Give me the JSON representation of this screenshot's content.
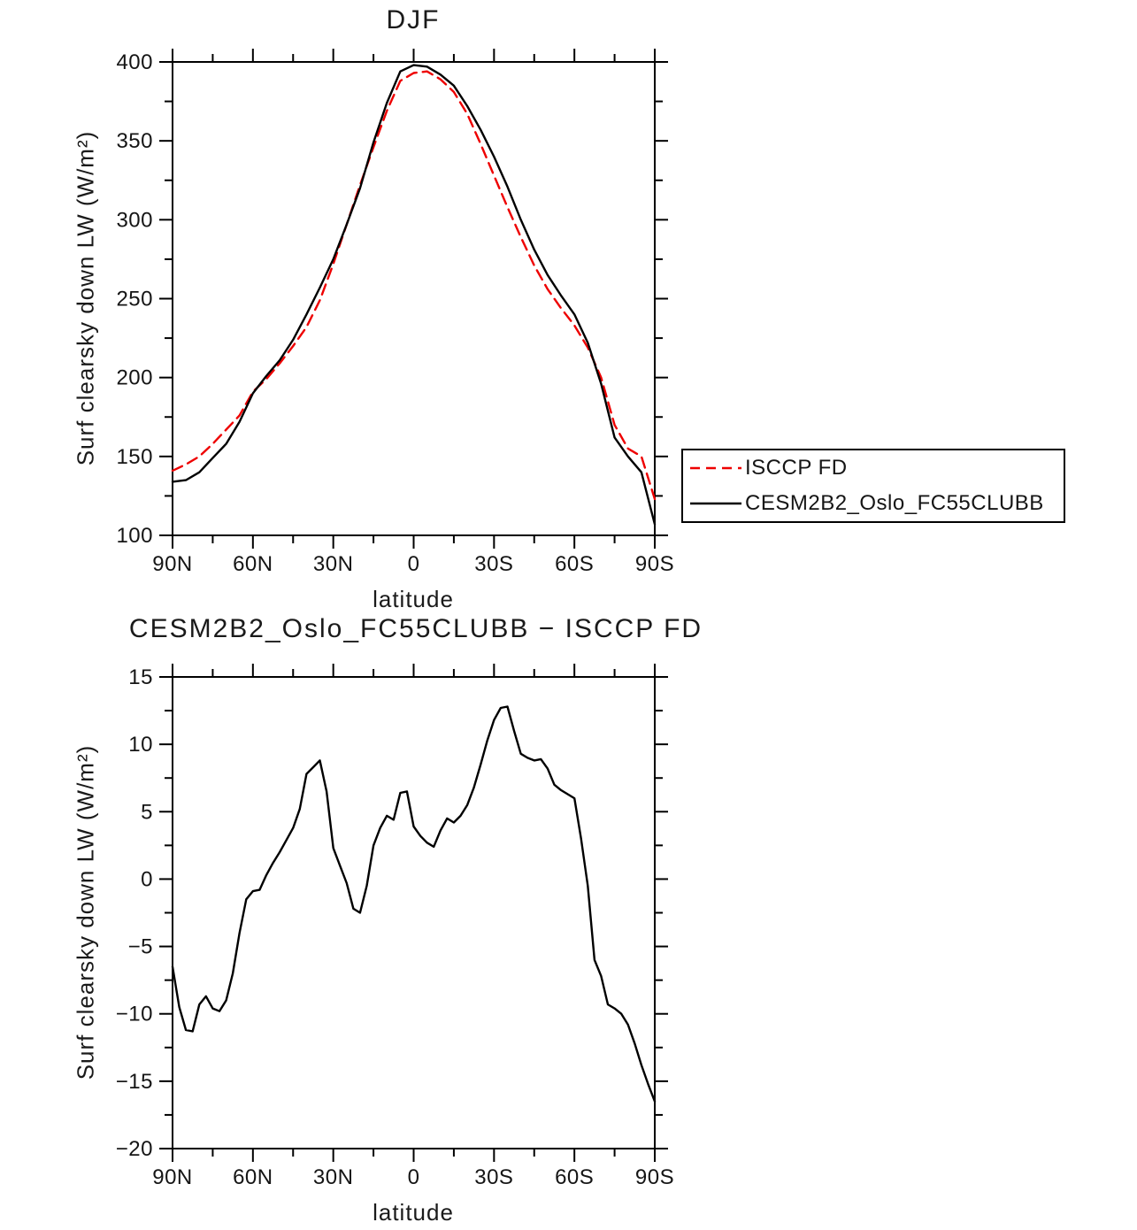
{
  "page": {
    "background": "#ffffff"
  },
  "legend": {
    "entries": [
      {
        "label": "ISCCP FD",
        "color": "#ee0000",
        "style": "dashed"
      },
      {
        "label": "CESM2B2_Oslo_FC55CLUBB",
        "color": "#000000",
        "style": "solid"
      }
    ]
  },
  "chart_data": [
    {
      "type": "line",
      "title": "DJF",
      "xlabel": "latitude",
      "ylabel": "Surf clearsky down LW (W/m²)",
      "xlim": [
        90,
        -90
      ],
      "ylim": [
        100,
        400
      ],
      "grid": false,
      "legend_position": "outside-right",
      "xtick_values": [
        90,
        60,
        30,
        0,
        -30,
        -60,
        -90
      ],
      "xtick_labels": [
        "90N",
        "60N",
        "30N",
        "0",
        "30S",
        "60S",
        "90S"
      ],
      "xminor_values": [
        75,
        45,
        15,
        -15,
        -45,
        -75
      ],
      "ytick_values": [
        100,
        150,
        200,
        250,
        300,
        350,
        400
      ],
      "ytick_labels": [
        "100",
        "150",
        "200",
        "250",
        "300",
        "350",
        "400"
      ],
      "yminor_values": [
        125,
        175,
        225,
        275,
        325,
        375
      ],
      "x": [
        90,
        85,
        80,
        75,
        70,
        65,
        60,
        55,
        50,
        45,
        40,
        35,
        30,
        25,
        20,
        15,
        10,
        5,
        0,
        -5,
        -10,
        -15,
        -20,
        -25,
        -30,
        -35,
        -40,
        -45,
        -50,
        -55,
        -60,
        -65,
        -70,
        -75,
        -80,
        -85,
        -90
      ],
      "series": [
        {
          "name": "ISCCP FD",
          "color": "#ee0000",
          "dash": [
            12,
            7
          ],
          "width": 2.4,
          "values": [
            141,
            145,
            150,
            158,
            167,
            176,
            191,
            199,
            209,
            220,
            232,
            249,
            272,
            297,
            322,
            346,
            369,
            388,
            393,
            394,
            389,
            381,
            367,
            348,
            328,
            308,
            289,
            271,
            256,
            244,
            233,
            219,
            200,
            170,
            155,
            150,
            123
          ]
        },
        {
          "name": "CESM2B2_Oslo_FC55CLUBB",
          "color": "#000000",
          "dash": null,
          "width": 2.4,
          "values": [
            134,
            135,
            140,
            149,
            158,
            172,
            190,
            201,
            211,
            224,
            240,
            257,
            275,
            297,
            320,
            349,
            374,
            394,
            398,
            397,
            392,
            385,
            372,
            357,
            340,
            321,
            300,
            281,
            265,
            252,
            240,
            222,
            196,
            162,
            150,
            140,
            107
          ]
        }
      ]
    },
    {
      "type": "line",
      "title": "CESM2B2_Oslo_FC55CLUBB − ISCCP FD",
      "xlabel": "latitude",
      "ylabel": "Surf clearsky down LW (W/m²)",
      "xlim": [
        90,
        -90
      ],
      "ylim": [
        -20,
        15
      ],
      "grid": false,
      "legend_position": "none",
      "xtick_values": [
        90,
        60,
        30,
        0,
        -30,
        -60,
        -90
      ],
      "xtick_labels": [
        "90N",
        "60N",
        "30N",
        "0",
        "30S",
        "60S",
        "90S"
      ],
      "xminor_values": [
        75,
        45,
        15,
        -15,
        -45,
        -75
      ],
      "ytick_values": [
        -20,
        -15,
        -10,
        -5,
        0,
        5,
        10,
        15
      ],
      "ytick_labels": [
        "−20",
        "−15",
        "−10",
        "−5",
        "0",
        "5",
        "10",
        "15"
      ],
      "yminor_values": [
        -17.5,
        -12.5,
        -7.5,
        -2.5,
        2.5,
        7.5,
        12.5
      ],
      "x": [
        90,
        87.5,
        85,
        82.5,
        80,
        77.5,
        75,
        72.5,
        70,
        67.5,
        65,
        62.5,
        60,
        57.5,
        55,
        52.5,
        50,
        47.5,
        45,
        42.5,
        40,
        37.5,
        35,
        32.5,
        30,
        27.5,
        25,
        22.5,
        20,
        17.5,
        15,
        12.5,
        10,
        7.5,
        5,
        2.5,
        0,
        -2.5,
        -5,
        -7.5,
        -10,
        -12.5,
        -15,
        -17.5,
        -20,
        -22.5,
        -25,
        -27.5,
        -30,
        -32.5,
        -35,
        -37.5,
        -40,
        -42.5,
        -45,
        -47.5,
        -50,
        -52.5,
        -55,
        -57.5,
        -60,
        -62.5,
        -65,
        -67.5,
        -70,
        -72.5,
        -75,
        -77.5,
        -80,
        -82.5,
        -85,
        -87.5,
        -90
      ],
      "series": [
        {
          "name": "CESM2B2_Oslo_FC55CLUBB − ISCCP FD",
          "color": "#000000",
          "dash": null,
          "width": 2.4,
          "values": [
            -6.5,
            -9.5,
            -11.2,
            -11.3,
            -9.3,
            -8.7,
            -9.6,
            -9.8,
            -9.0,
            -7.0,
            -4.0,
            -1.5,
            -0.9,
            -0.8,
            0.3,
            1.2,
            2.0,
            2.9,
            3.8,
            5.2,
            7.8,
            8.3,
            8.8,
            6.5,
            2.3,
            1.0,
            -0.3,
            -2.2,
            -2.5,
            -0.5,
            2.5,
            3.8,
            4.7,
            4.4,
            6.4,
            6.5,
            3.9,
            3.2,
            2.7,
            2.4,
            3.6,
            4.5,
            4.2,
            4.7,
            5.5,
            6.8,
            8.5,
            10.3,
            11.8,
            12.7,
            12.8,
            11.0,
            9.3,
            9.0,
            8.8,
            8.9,
            8.2,
            7.0,
            6.6,
            6.3,
            6.0,
            3.0,
            -0.5,
            -6.0,
            -7.2,
            -9.3,
            -9.6,
            -10.0,
            -10.8,
            -12.2,
            -13.8,
            -15.2,
            -16.5
          ]
        }
      ]
    }
  ]
}
